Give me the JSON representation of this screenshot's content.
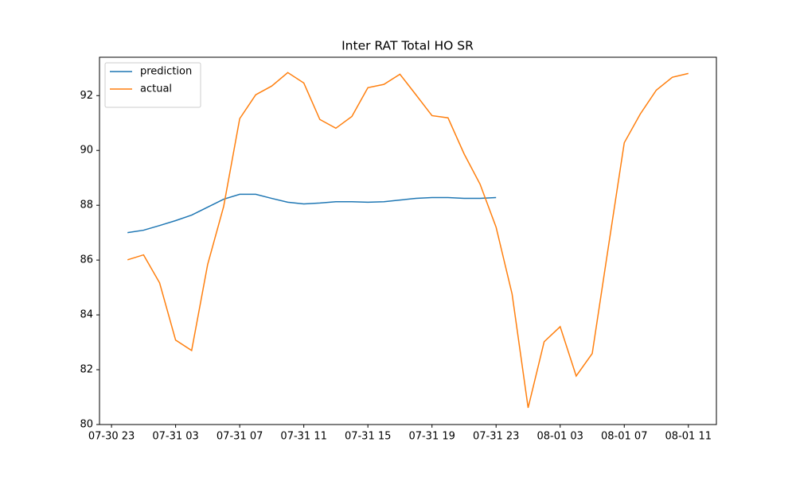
{
  "chart_data": {
    "type": "line",
    "title": "Inter RAT Total HO SR",
    "x": [
      "07-31 00",
      "07-31 01",
      "07-31 02",
      "07-31 03",
      "07-31 04",
      "07-31 05",
      "07-31 06",
      "07-31 07",
      "07-31 08",
      "07-31 09",
      "07-31 10",
      "07-31 11",
      "07-31 12",
      "07-31 13",
      "07-31 14",
      "07-31 15",
      "07-31 16",
      "07-31 17",
      "07-31 18",
      "07-31 19",
      "07-31 20",
      "07-31 21",
      "07-31 22",
      "07-31 23",
      "08-01 00",
      "08-01 01",
      "08-01 02",
      "08-01 03",
      "08-01 04",
      "08-01 05",
      "08-01 06",
      "08-01 07",
      "08-01 08",
      "08-01 09",
      "08-01 10",
      "08-01 11"
    ],
    "series": [
      {
        "name": "prediction",
        "color": "#1f77b4",
        "values": [
          87.0,
          87.09,
          87.26,
          87.44,
          87.64,
          87.93,
          88.22,
          88.4,
          88.4,
          88.25,
          88.11,
          88.05,
          88.08,
          88.13,
          88.13,
          88.11,
          88.13,
          88.19,
          88.25,
          88.28,
          88.28,
          88.25,
          88.25,
          88.28,
          null,
          null,
          null,
          null,
          null,
          null,
          null,
          null,
          null,
          null,
          null,
          null
        ]
      },
      {
        "name": "actual",
        "color": "#ff7f0e",
        "values": [
          86.01,
          86.19,
          85.17,
          83.08,
          82.7,
          85.84,
          87.96,
          91.16,
          92.03,
          92.35,
          92.84,
          92.46,
          91.13,
          90.81,
          91.24,
          92.29,
          92.41,
          92.78,
          92.03,
          91.27,
          91.19,
          89.88,
          88.77,
          87.2,
          84.76,
          80.61,
          83.02,
          83.57,
          81.77,
          82.59,
          86.45,
          90.28,
          91.33,
          92.2,
          92.67,
          92.81
        ]
      }
    ],
    "xlim": [
      "07-30 22:15",
      "08-01 12:45"
    ],
    "xticks": [
      "07-30 23",
      "07-31 03",
      "07-31 07",
      "07-31 11",
      "07-31 15",
      "07-31 19",
      "07-31 23",
      "08-01 03",
      "08-01 07",
      "08-01 11"
    ],
    "ylim": [
      80,
      93.4
    ],
    "yticks": [
      80,
      82,
      84,
      86,
      88,
      90,
      92
    ],
    "grid": false,
    "legend": "upper left"
  }
}
